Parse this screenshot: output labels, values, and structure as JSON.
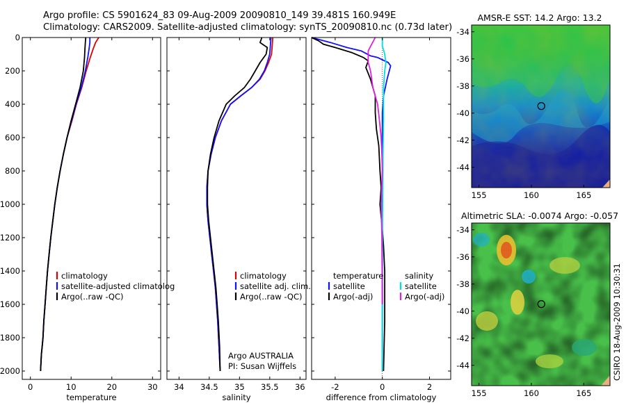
{
  "figure": {
    "title_line1": "Argo profile: CS 5901624_83 09-Aug-2009 20090810_149 39.481S 160.949E",
    "title_line2": "Climatology: CARS2009. Satellite-adjusted climatology: synTS_20090810.nc (0.73d later)",
    "credit_line1": "Argo AUSTRALIA",
    "credit_line2": "PI: Susan Wijffels",
    "side_label": "CSIRO 18-Aug-2009 10:30:31"
  },
  "colors": {
    "climatology": "#dd0000",
    "satellite": "#1010ff",
    "argo": "#000000",
    "salinity_satellite": "#00e0e0",
    "salinity_argo": "#e020e0"
  },
  "chart_data": [
    {
      "type": "line",
      "id": "temperature_panel",
      "xlabel": "temperature",
      "ylabel": "",
      "xlim": [
        -2,
        32
      ],
      "ylim": [
        2050,
        0
      ],
      "xticks": [
        0,
        10,
        20,
        30
      ],
      "yticks": [
        0,
        200,
        400,
        600,
        800,
        1000,
        1200,
        1400,
        1600,
        1800,
        2000
      ],
      "legend": [
        "climatology",
        "satellite-adjusted climatolog",
        "Argo(..raw -QC)"
      ],
      "series": [
        {
          "name": "climatology",
          "color_key": "climatology",
          "x": [
            16.8,
            16.0,
            15.4,
            14.7,
            13.7,
            12.6,
            11.3,
            10.2,
            9.0,
            8.1,
            7.3,
            6.6,
            6.0,
            5.5,
            5.0,
            4.6,
            4.2,
            3.9,
            3.6,
            3.3,
            3.1,
            2.9,
            2.7,
            2.6,
            2.5
          ],
          "y": [
            0,
            30,
            70,
            120,
            200,
            300,
            400,
            500,
            600,
            700,
            800,
            900,
            1000,
            1100,
            1200,
            1300,
            1400,
            1500,
            1600,
            1700,
            1800,
            1850,
            1900,
            1950,
            2000
          ]
        },
        {
          "name": "satellite-adjusted climatolog",
          "color_key": "satellite",
          "x": [
            14.6,
            14.6,
            14.4,
            14.1,
            13.5,
            12.5,
            11.2,
            10.1,
            9.0,
            8.1,
            7.3,
            6.6,
            6.0,
            5.5,
            5.0,
            4.6,
            4.2,
            3.9,
            3.6,
            3.3,
            3.1,
            2.9,
            2.7,
            2.6,
            2.5
          ],
          "y": [
            0,
            30,
            70,
            120,
            200,
            300,
            400,
            500,
            600,
            700,
            800,
            900,
            1000,
            1100,
            1200,
            1300,
            1400,
            1500,
            1600,
            1700,
            1800,
            1850,
            1900,
            1950,
            2000
          ]
        },
        {
          "name": "Argo(..raw -QC)",
          "color_key": "argo",
          "x": [
            13.6,
            13.5,
            13.4,
            13.3,
            13.0,
            12.2,
            11.1,
            10.0,
            9.0,
            8.1,
            7.3,
            6.6,
            6.0,
            5.5,
            5.0,
            4.6,
            4.2,
            3.9,
            3.6,
            3.3,
            3.1,
            2.9,
            2.7,
            2.6,
            2.5
          ],
          "y": [
            0,
            30,
            70,
            120,
            200,
            300,
            400,
            500,
            600,
            700,
            800,
            900,
            1000,
            1100,
            1200,
            1300,
            1400,
            1500,
            1600,
            1700,
            1800,
            1850,
            1900,
            1950,
            2000
          ]
        }
      ]
    },
    {
      "type": "line",
      "id": "salinity_panel",
      "xlabel": "salinity",
      "ylabel": "",
      "xlim": [
        33.8,
        36.1
      ],
      "ylim": [
        2050,
        0
      ],
      "xticks": [
        34,
        34.5,
        35,
        35.5,
        36
      ],
      "yticks": [
        0,
        200,
        400,
        600,
        800,
        1000,
        1200,
        1400,
        1600,
        1800,
        2000
      ],
      "legend": [
        "climatology",
        "satellite adj. clim.",
        "Argo(..raw -QC)"
      ],
      "series": [
        {
          "name": "climatology",
          "color_key": "climatology",
          "x": [
            35.55,
            35.53,
            35.48,
            35.42,
            35.34,
            35.2,
            35.02,
            34.85,
            34.7,
            34.6,
            34.53,
            34.48,
            34.46,
            34.46,
            34.48,
            34.51,
            34.54,
            34.57,
            34.6,
            34.62,
            34.64,
            34.66,
            34.68
          ],
          "y": [
            0,
            100,
            150,
            200,
            250,
            300,
            350,
            400,
            500,
            600,
            700,
            800,
            900,
            1000,
            1100,
            1200,
            1300,
            1400,
            1500,
            1600,
            1700,
            1850,
            2000
          ]
        },
        {
          "name": "satellite adj. clim.",
          "color_key": "satellite",
          "x": [
            35.52,
            35.5,
            35.46,
            35.41,
            35.33,
            35.2,
            35.02,
            34.85,
            34.7,
            34.6,
            34.53,
            34.48,
            34.46,
            34.46,
            34.48,
            34.51,
            34.54,
            34.57,
            34.6,
            34.62,
            34.64,
            34.66,
            34.68
          ],
          "y": [
            0,
            100,
            150,
            200,
            250,
            300,
            350,
            400,
            500,
            600,
            700,
            800,
            900,
            1000,
            1100,
            1200,
            1300,
            1400,
            1500,
            1600,
            1700,
            1850,
            2000
          ]
        },
        {
          "name": "Argo(..raw -QC)",
          "color_key": "argo",
          "x": [
            35.37,
            35.34,
            35.46,
            35.44,
            35.34,
            35.26,
            35.18,
            35.08,
            34.92,
            34.78,
            34.66,
            34.58,
            34.52,
            34.48,
            34.47,
            34.47,
            34.49,
            34.52,
            34.55,
            34.58,
            34.61,
            34.63,
            34.65,
            34.67,
            34.68
          ],
          "y": [
            0,
            30,
            60,
            100,
            150,
            200,
            250,
            300,
            350,
            400,
            500,
            600,
            700,
            800,
            900,
            1000,
            1100,
            1200,
            1300,
            1400,
            1500,
            1600,
            1700,
            1850,
            2000
          ]
        }
      ]
    },
    {
      "type": "line",
      "id": "difference_panel",
      "xlabel": "difference from climatology",
      "ylabel": "",
      "xlim": [
        -3.0,
        2.9
      ],
      "ylim": [
        2050,
        0
      ],
      "xticks": [
        -2,
        0,
        2
      ],
      "yticks": [
        0,
        200,
        400,
        600,
        800,
        1000,
        1200,
        1400,
        1600,
        1800,
        2000
      ],
      "legend_temperature": [
        "temperature",
        "satellite",
        "Argo(-adj)"
      ],
      "legend_salinity": [
        "salinity",
        "satellite",
        "Argo(-adj)"
      ],
      "series": [
        {
          "name": "satellite",
          "group": "temperature",
          "color_key": "satellite",
          "x": [
            -3.0,
            -2.2,
            -1.5,
            -0.9,
            -0.5,
            -0.2,
            0.25,
            0.35,
            0.2,
            0.05,
            0.0,
            0.0,
            0.0
          ],
          "y": [
            0,
            30,
            60,
            80,
            110,
            120,
            150,
            170,
            250,
            350,
            450,
            800,
            2000
          ]
        },
        {
          "name": "Argo(-adj)",
          "group": "temperature",
          "color_key": "argo",
          "x": [
            -3.0,
            -2.7,
            -2.5,
            -2.0,
            -1.3,
            -0.8,
            -0.6,
            -0.7,
            -0.5,
            -0.3,
            -0.3,
            -0.25,
            -0.15,
            -0.1,
            -0.05,
            -0.1,
            0.0,
            0.05,
            0.1,
            0.1,
            0.05
          ],
          "y": [
            0,
            20,
            40,
            60,
            90,
            120,
            140,
            180,
            250,
            350,
            450,
            550,
            650,
            800,
            900,
            1000,
            1150,
            1250,
            1400,
            1700,
            2000
          ]
        },
        {
          "name": "satellite",
          "group": "salinity",
          "color_key": "salinity_satellite",
          "x": [
            0.0,
            0.0,
            0.1,
            0.15,
            0.1,
            0.05,
            0.05,
            0.03,
            0.02,
            0.0,
            0.0,
            0.0
          ],
          "y": [
            0,
            50,
            100,
            150,
            200,
            300,
            500,
            700,
            900,
            1200,
            1600,
            2000
          ]
        },
        {
          "name": "Argo(-adj)",
          "group": "salinity",
          "color_key": "salinity_argo",
          "x": [
            -0.3,
            -0.45,
            -0.6,
            -0.6,
            -0.5,
            -0.4,
            -0.3,
            -0.2,
            -0.12,
            -0.05,
            -0.02,
            0.0,
            -0.05,
            -0.02,
            0.0
          ],
          "y": [
            0,
            40,
            80,
            150,
            200,
            300,
            350,
            400,
            500,
            600,
            700,
            800,
            1000,
            1200,
            1600
          ]
        }
      ]
    },
    {
      "type": "heatmap",
      "id": "sst_map",
      "title": "AMSR-E SST: 14.2  Argo: 13.2",
      "xlim": [
        154.3,
        167.5
      ],
      "ylim": [
        -45.5,
        -33.5
      ],
      "xticks": [
        155,
        160,
        165
      ],
      "yticks": [
        -34,
        -36,
        -38,
        -40,
        -42,
        -44
      ],
      "marker": {
        "lon": 160.949,
        "lat": -39.481
      }
    },
    {
      "type": "heatmap",
      "id": "sla_map",
      "title": "Altimetric SLA: -0.0074  Argo: -0.057",
      "xlim": [
        154.3,
        167.5
      ],
      "ylim": [
        -45.5,
        -33.5
      ],
      "xticks": [
        155,
        160,
        165
      ],
      "yticks": [
        -34,
        -36,
        -38,
        -40,
        -42,
        -44
      ],
      "marker": {
        "lon": 160.949,
        "lat": -39.481
      }
    }
  ]
}
